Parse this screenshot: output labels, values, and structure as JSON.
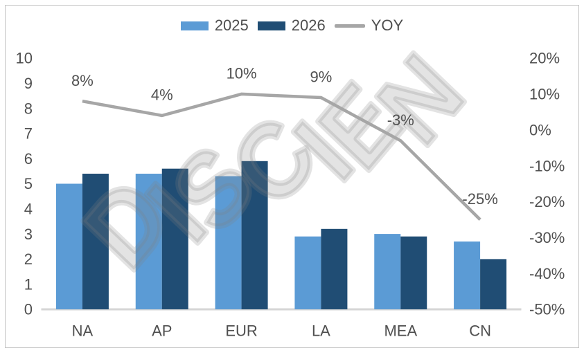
{
  "watermark": {
    "text": "DISCIEN"
  },
  "colors": {
    "bar_2025": "#5b9bd5",
    "bar_2026": "#204d74",
    "line_yoy": "#a6a6a6",
    "text": "#4f4f4f",
    "baseline": "#d6d6d6",
    "frame_border": "#c2c2c2",
    "watermark_gray": "rgba(128,128,128,0.22)"
  },
  "chart_data": {
    "type": "bar",
    "subtype": "grouped-bars-with-line-combo",
    "title": "",
    "xlabel": "",
    "ylabel": "",
    "grid": false,
    "legend_position": "top",
    "categories": [
      "NA",
      "AP",
      "EUR",
      "LA",
      "MEA",
      "CN"
    ],
    "series": [
      {
        "name": "2025",
        "type": "bar",
        "axis": "left",
        "values": [
          5.0,
          5.4,
          5.3,
          2.9,
          3.0,
          2.7
        ]
      },
      {
        "name": "2026",
        "type": "bar",
        "axis": "left",
        "values": [
          5.4,
          5.6,
          5.9,
          3.2,
          2.9,
          2.0
        ]
      },
      {
        "name": "YOY",
        "type": "line",
        "axis": "right",
        "values": [
          8,
          4,
          10,
          9,
          -3,
          -25
        ],
        "point_labels": [
          "8%",
          "4%",
          "10%",
          "9%",
          "-3%",
          "-25%"
        ]
      }
    ],
    "left_axis": {
      "min": 0,
      "max": 10,
      "tick_step": 1,
      "tick_labels": [
        "0",
        "1",
        "2",
        "3",
        "4",
        "5",
        "6",
        "7",
        "8",
        "9",
        "10"
      ]
    },
    "right_axis": {
      "min": -50,
      "max": 20,
      "tick_step": 10,
      "tick_labels": [
        "20%",
        "10%",
        "0%",
        "-10%",
        "-20%",
        "-30%",
        "-40%",
        "-50%"
      ]
    }
  }
}
